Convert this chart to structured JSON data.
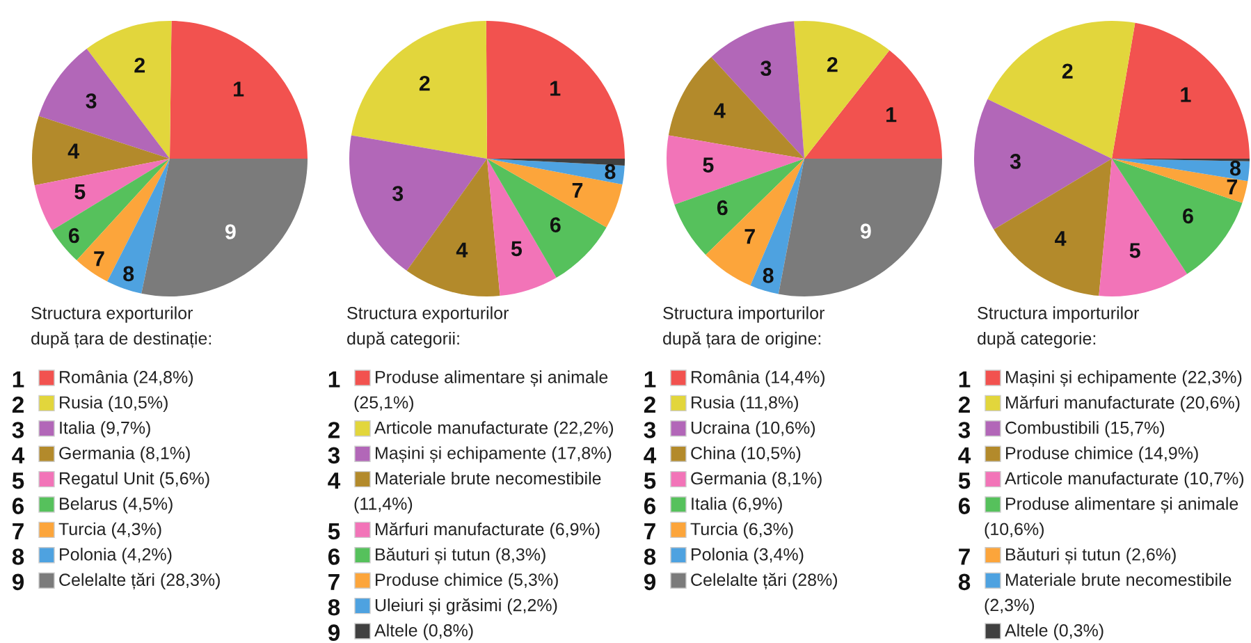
{
  "chart_data": [
    {
      "type": "pie",
      "title": "Structura exporturilor după țara de destinație:",
      "legend": "bottom",
      "categories": [
        "România (24,8%)",
        "Rusia (10,5%)",
        "Italia (9,7%)",
        "Germania (8,1%)",
        "Regatul Unit (5,6%)",
        "Belarus (4,5%)",
        "Turcia (4,3%)",
        "Polonia (4,2%)",
        "Celelalte țări (28,3%)"
      ],
      "values": [
        24.8,
        10.5,
        9.7,
        8.1,
        5.6,
        4.5,
        4.3,
        4.2,
        28.3
      ],
      "annotations": [
        "1",
        "2",
        "3",
        "4",
        "5",
        "6",
        "7",
        "8",
        "9"
      ],
      "colors": [
        "#f2524f",
        "#e2d63c",
        "#b267b8",
        "#b38a2b",
        "#f274b8",
        "#56c15c",
        "#fca53b",
        "#4ea2e0",
        "#7b7b7b"
      ]
    },
    {
      "type": "pie",
      "title": "Structura exporturilor după categorii:",
      "legend": "bottom",
      "categories": [
        "Produse alimentare și animale (25,1%)",
        "Articole manufacturate (22,2%)",
        "Mașini și echipamente (17,8%)",
        "Materiale brute necomestibile (11,4%)",
        "Mărfuri manufacturate (6,9%)",
        "Băuturi și tutun (8,3%)",
        "Produse chimice (5,3%)",
        "Uleiuri și grăsimi (2,2%)",
        "Altele (0,8%)"
      ],
      "values": [
        25.1,
        22.2,
        17.8,
        11.4,
        6.9,
        8.3,
        5.3,
        2.2,
        0.8
      ],
      "annotations": [
        "1",
        "2",
        "3",
        "4",
        "5",
        "6",
        "7",
        "8",
        "9"
      ],
      "colors": [
        "#f2524f",
        "#e2d63c",
        "#b267b8",
        "#b38a2b",
        "#f274b8",
        "#56c15c",
        "#fca53b",
        "#4ea2e0",
        "#404040"
      ]
    },
    {
      "type": "pie",
      "title": "Structura importurilor după țara de origine:",
      "legend": "bottom",
      "categories": [
        "România (14,4%)",
        "Rusia (11,8%)",
        "Ucraina (10,6%)",
        "China (10,5%)",
        "Germania (8,1%)",
        "Italia (6,9%)",
        "Turcia (6,3%)",
        "Polonia (3,4%)",
        "Celelalte țări (28%)"
      ],
      "values": [
        14.4,
        11.8,
        10.6,
        10.5,
        8.1,
        6.9,
        6.3,
        3.4,
        28
      ],
      "annotations": [
        "1",
        "2",
        "3",
        "4",
        "5",
        "6",
        "7",
        "8",
        "9"
      ],
      "colors": [
        "#f2524f",
        "#e2d63c",
        "#b267b8",
        "#b38a2b",
        "#f274b8",
        "#56c15c",
        "#fca53b",
        "#4ea2e0",
        "#7b7b7b"
      ]
    },
    {
      "type": "pie",
      "title": "Structura importurilor după categorie:",
      "legend": "bottom",
      "categories": [
        "Mașini și echipamente (22,3%)",
        "Mărfuri manufacturate (20,6%)",
        "Combustibili (15,7%)",
        "Produse chimice (14,9%)",
        "Articole manufacturate (10,7%)",
        "Produse alimentare și animale (10,6%)",
        "Băuturi și tutun (2,6%)",
        "Materiale brute necomestibile (2,3%)",
        "Altele (0,3%)"
      ],
      "values": [
        22.3,
        20.6,
        15.7,
        14.9,
        10.7,
        10.6,
        2.6,
        2.3,
        0.3
      ],
      "annotations": [
        "1",
        "2",
        "3",
        "4",
        "5",
        "6",
        "7",
        "8"
      ],
      "colors": [
        "#f2524f",
        "#e2d63c",
        "#b267b8",
        "#b38a2b",
        "#f274b8",
        "#56c15c",
        "#fca53b",
        "#4ea2e0",
        "#404040"
      ]
    }
  ]
}
